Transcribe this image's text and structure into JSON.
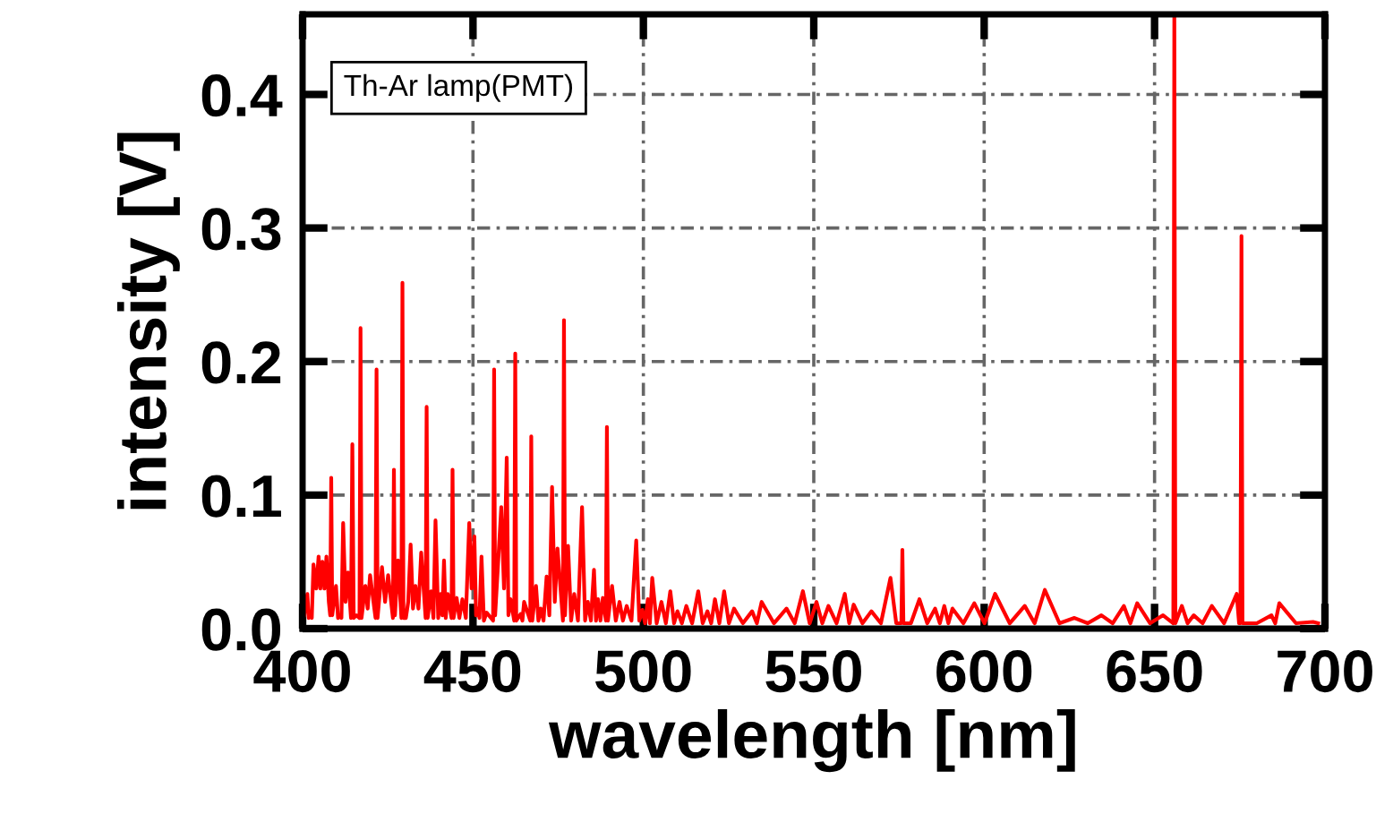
{
  "chart_data": {
    "type": "line",
    "xlabel": "wavelength [nm]",
    "ylabel": "intensity [V]",
    "annotations": [
      "Th-Ar lamp(PMT)"
    ],
    "xlim": [
      400,
      700
    ],
    "xticks": [
      400,
      450,
      500,
      550,
      600,
      650,
      700
    ],
    "ylim": [
      0,
      0.46
    ],
    "yticks": [
      {
        "value": 0,
        "label": "0.0"
      },
      0.1,
      0.2,
      0.3,
      0.4
    ],
    "grid": true,
    "marker": "none",
    "line_style": "solid",
    "series": [
      {
        "color": "#ff0000",
        "x": [
          400.5,
          401.4,
          401.8,
          402.3,
          402.7,
          403.2,
          404.0,
          404.7,
          405.2,
          405.8,
          406.4,
          407.0,
          407.7,
          408.1,
          408.4,
          408.7,
          409.8,
          410.4,
          410.9,
          411.4,
          411.9,
          412.6,
          413.3,
          414.2,
          414.6,
          415.0,
          415.8,
          416.7,
          417.0,
          417.3,
          418.4,
          419.1,
          419.8,
          421.4,
          421.7,
          422.0,
          423.3,
          424.2,
          425.1,
          426.5,
          426.8,
          427.1,
          428.0,
          429.0,
          429.3,
          429.6,
          430.3,
          431.0,
          431.7,
          432.4,
          433.1,
          434.0,
          434.8,
          436.1,
          436.4,
          436.7,
          437.7,
          438.4,
          439.0,
          439.8,
          440.5,
          441.0,
          441.5,
          442.0,
          442.6,
          443.7,
          444.0,
          444.3,
          445.2,
          446.0,
          446.9,
          447.9,
          448.9,
          449.6,
          450.4,
          450.9,
          451.3,
          451.9,
          452.5,
          453.2,
          454.0,
          455.9,
          456.2,
          456.5,
          458.3,
          459.1,
          459.9,
          460.4,
          461.0,
          462.1,
          462.4,
          462.7,
          464.0,
          464.5,
          465.0,
          466.8,
          467.1,
          467.4,
          468.5,
          469.2,
          469.9,
          470.7,
          471.6,
          472.4,
          473.2,
          474.0,
          474.8,
          476.4,
          476.7,
          477.0,
          477.9,
          478.8,
          479.7,
          480.8,
          482.0,
          482.9,
          483.7,
          484.6,
          485.5,
          486.1,
          486.7,
          487.4,
          488.1,
          489.0,
          489.3,
          489.6,
          490.8,
          491.9,
          493.0,
          494.0,
          495.1,
          496.5,
          497.9,
          498.8,
          499.7,
          500.5,
          501.3,
          501.9,
          502.6,
          503.9,
          505.3,
          506.6,
          507.9,
          509.0,
          510.0,
          511.3,
          512.6,
          514.3,
          516.1,
          517.4,
          518.8,
          519.9,
          521.0,
          522.3,
          523.7,
          525.1,
          526.6,
          529.2,
          531.9,
          533.3,
          534.7,
          538.3,
          542.0,
          544.4,
          546.8,
          548.8,
          550.8,
          552.5,
          554.3,
          556.7,
          559.1,
          560.4,
          561.7,
          564.3,
          566.9,
          569.7,
          572.5,
          574.2,
          575.7,
          576.0,
          576.3,
          578.5,
          581.0,
          583.3,
          585.6,
          587.0,
          588.3,
          589.5,
          590.7,
          593.9,
          597.1,
          600.1,
          603.2,
          607.5,
          611.9,
          614.8,
          617.8,
          622.1,
          626.5,
          630.4,
          634.4,
          637.7,
          641.0,
          642.9,
          644.9,
          648.7,
          652.5,
          655.5,
          655.8,
          656.1,
          658.0,
          659.7,
          661.5,
          664.1,
          666.8,
          670.4,
          674.1,
          674.8,
          675.2,
          675.5,
          675.8,
          680.0,
          684.3,
          685.4,
          686.6,
          691.5,
          696.5,
          698.0
        ],
        "values": [
          0.01,
          0.026,
          0.008,
          0.012,
          0.008,
          0.048,
          0.03,
          0.054,
          0.03,
          0.05,
          0.03,
          0.054,
          0.02,
          0.01,
          0.113,
          0.01,
          0.032,
          0.008,
          0.01,
          0.008,
          0.079,
          0.02,
          0.042,
          0.008,
          0.138,
          0.008,
          0.01,
          0.008,
          0.225,
          0.008,
          0.032,
          0.015,
          0.04,
          0.008,
          0.194,
          0.008,
          0.046,
          0.02,
          0.04,
          0.008,
          0.119,
          0.01,
          0.051,
          0.008,
          0.259,
          0.008,
          0.008,
          0.02,
          0.063,
          0.015,
          0.032,
          0.015,
          0.057,
          0.008,
          0.166,
          0.008,
          0.028,
          0.008,
          0.081,
          0.008,
          0.026,
          0.01,
          0.051,
          0.008,
          0.026,
          0.008,
          0.119,
          0.008,
          0.023,
          0.008,
          0.022,
          0.008,
          0.079,
          0.03,
          0.069,
          0.01,
          0.015,
          0.008,
          0.054,
          0.006,
          0.012,
          0.006,
          0.194,
          0.01,
          0.091,
          0.03,
          0.128,
          0.01,
          0.022,
          0.006,
          0.206,
          0.006,
          0.011,
          0.006,
          0.02,
          0.006,
          0.144,
          0.006,
          0.032,
          0.006,
          0.015,
          0.006,
          0.039,
          0.01,
          0.106,
          0.02,
          0.06,
          0.006,
          0.231,
          0.01,
          0.062,
          0.006,
          0.026,
          0.006,
          0.091,
          0.006,
          0.02,
          0.006,
          0.044,
          0.006,
          0.022,
          0.006,
          0.023,
          0.006,
          0.151,
          0.006,
          0.032,
          0.006,
          0.02,
          0.006,
          0.017,
          0.006,
          0.066,
          0.006,
          0.014,
          0.004,
          0.022,
          0.004,
          0.038,
          0.004,
          0.02,
          0.004,
          0.028,
          0.004,
          0.013,
          0.004,
          0.017,
          0.004,
          0.028,
          0.004,
          0.013,
          0.004,
          0.022,
          0.004,
          0.028,
          0.004,
          0.015,
          0.004,
          0.013,
          0.004,
          0.02,
          0.004,
          0.015,
          0.004,
          0.028,
          0.004,
          0.02,
          0.004,
          0.017,
          0.004,
          0.026,
          0.004,
          0.018,
          0.004,
          0.013,
          0.004,
          0.038,
          0.004,
          0.004,
          0.059,
          0.004,
          0.004,
          0.022,
          0.004,
          0.015,
          0.004,
          0.017,
          0.004,
          0.015,
          0.004,
          0.019,
          0.004,
          0.026,
          0.004,
          0.017,
          0.004,
          0.029,
          0.004,
          0.008,
          0.004,
          0.01,
          0.004,
          0.017,
          0.004,
          0.019,
          0.004,
          0.01,
          0.004,
          0.46,
          0.004,
          0.017,
          0.004,
          0.01,
          0.004,
          0.017,
          0.004,
          0.026,
          0.004,
          0.004,
          0.294,
          0.004,
          0.004,
          0.01,
          0.004,
          0.019,
          0.004,
          0.005,
          0.004
        ]
      }
    ]
  }
}
